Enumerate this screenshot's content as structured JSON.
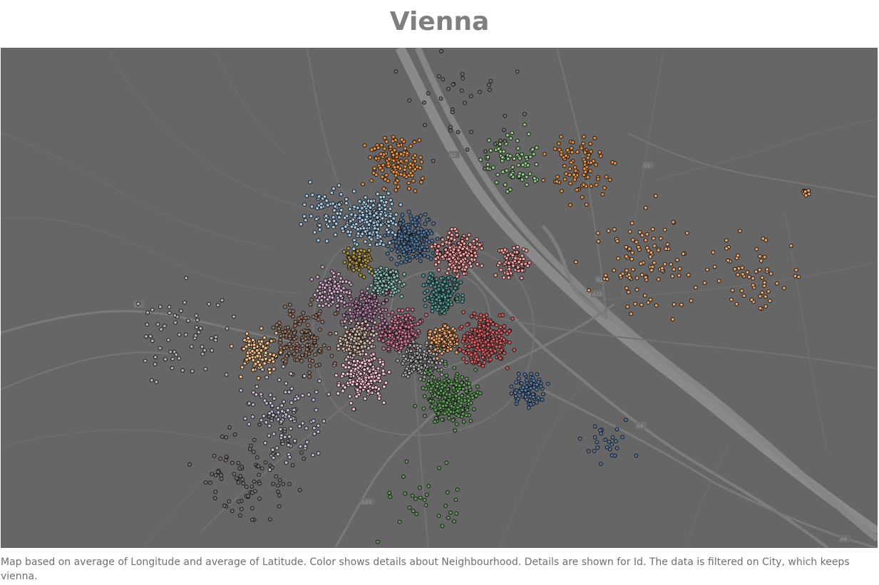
{
  "title": "Vienna",
  "caption": "Map based on average of Longitude and average of Latitude.  Color shows details about Neighbourhood.  Details are shown for Id. The data is filtered on City, which keeps vienna.",
  "map": {
    "background": "#666666",
    "road_color": "#7c7c7c",
    "river_color": "#8a8a8a",
    "road_labels": [
      "A1",
      "A22",
      "A4",
      "A23",
      "S2",
      "A1",
      "A4",
      "S1"
    ]
  },
  "point_style": {
    "outline": "#1a1a1a"
  },
  "neighbourhoods": [
    {
      "color": "#4e79a7"
    },
    {
      "color": "#a0cbe8"
    },
    {
      "color": "#f28e2b"
    },
    {
      "color": "#ffbe7d"
    },
    {
      "color": "#59a14f"
    },
    {
      "color": "#8cd17d"
    },
    {
      "color": "#b6992d"
    },
    {
      "color": "#f1ce63"
    },
    {
      "color": "#499894"
    },
    {
      "color": "#86bcb6"
    },
    {
      "color": "#e15759"
    },
    {
      "color": "#ff9d9a"
    },
    {
      "color": "#79706e"
    },
    {
      "color": "#bab0ac"
    },
    {
      "color": "#d37295"
    },
    {
      "color": "#fabfd2"
    },
    {
      "color": "#b07aa1"
    },
    {
      "color": "#d4a6c8"
    },
    {
      "color": "#9d7660"
    },
    {
      "color": "#d7b5a6"
    },
    {
      "color": "#a3a3a3"
    },
    {
      "color": "#f5a45e"
    },
    {
      "color": "#c7b8d6"
    }
  ]
}
